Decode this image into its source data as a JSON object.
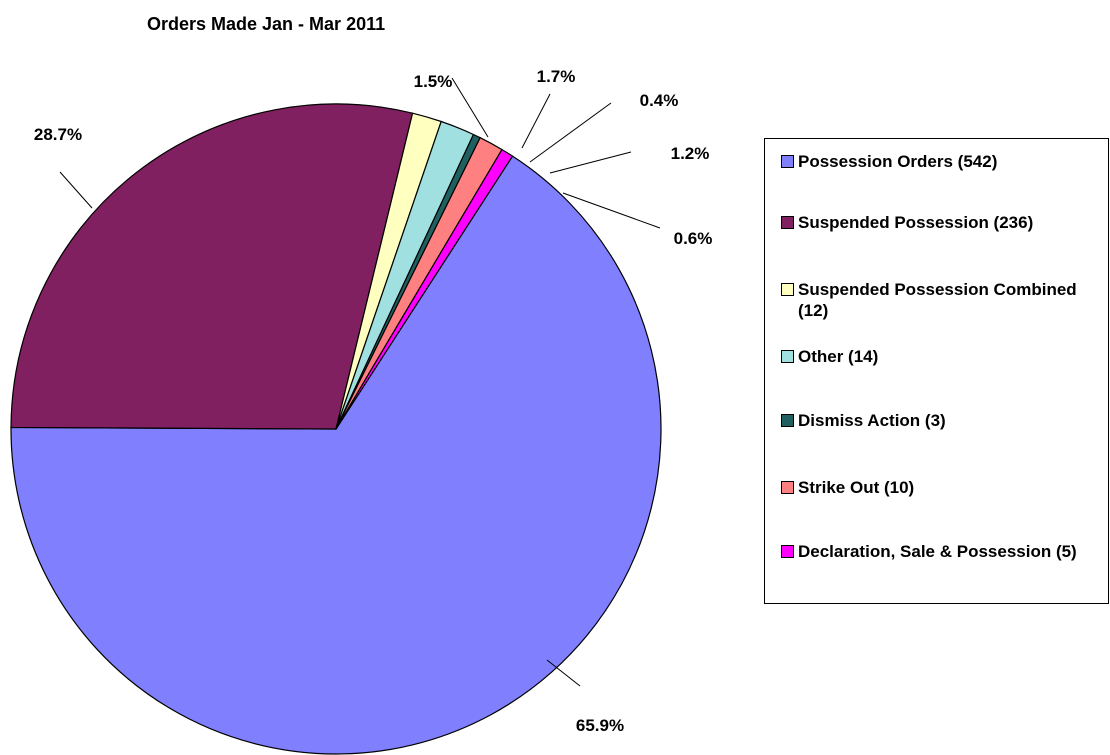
{
  "chart_data": {
    "type": "pie",
    "title": "Orders Made Jan - Mar 2011",
    "legend_position": "right",
    "slices": [
      {
        "label": "Possession Orders (542)",
        "value": 542,
        "percent_label": "65.9%",
        "color": "#8080ff"
      },
      {
        "label": "Suspended Possession (236)",
        "value": 236,
        "percent_label": "28.7%",
        "color": "#802060"
      },
      {
        "label": "Suspended Possession Combined (12)",
        "value": 12,
        "percent_label": "1.5%",
        "color": "#ffffc0"
      },
      {
        "label": "Other (14)",
        "value": 14,
        "percent_label": "1.7%",
        "color": "#a0e0e0"
      },
      {
        "label": "Dismiss Action (3)",
        "value": 3,
        "percent_label": "0.4%",
        "color": "#206060"
      },
      {
        "label": "Strike Out (10)",
        "value": 10,
        "percent_label": "1.2%",
        "color": "#ff8080"
      },
      {
        "label": "Declaration, Sale & Possession (5)",
        "value": 5,
        "percent_label": "0.6%",
        "color": "#ff00ff"
      }
    ]
  }
}
